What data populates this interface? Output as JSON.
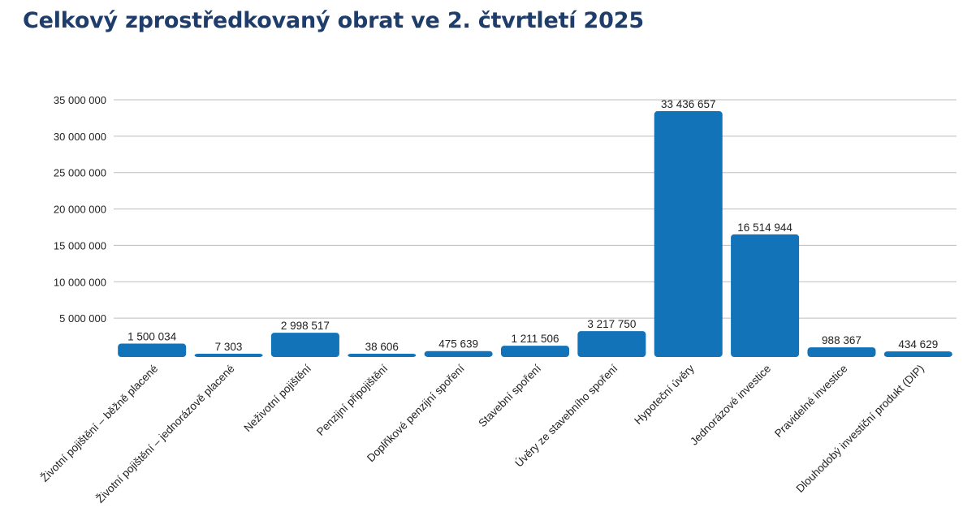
{
  "title": "Celkový zprostředkovaný obrat ve 2. čtvrtletí 2025",
  "chart_data": {
    "type": "bar",
    "title": "Celkový zprostředkovaný obrat ve 2. čtvrtletí 2025",
    "xlabel": "",
    "ylabel": "",
    "ylim": [
      0,
      35000000
    ],
    "yticks": [
      5000000,
      10000000,
      15000000,
      20000000,
      25000000,
      30000000,
      35000000
    ],
    "ytick_labels": [
      "5 000 000",
      "10 000 000",
      "15 000 000",
      "20 000 000",
      "25 000 000",
      "30 000 000",
      "35 000 000"
    ],
    "grid": true,
    "bar_color": "#1273b9",
    "categories": [
      "Životní pojištění – běžně placené",
      "Životní pojištění – jednorázově placené",
      "Neživotní pojištění",
      "Penzijní připojištění",
      "Doplňkové penzijní spoření",
      "Stavební spoření",
      "Úvěry ze stavebního spoření",
      "Hypoteční úvěry",
      "Jednorázové investice",
      "Pravidelné investice",
      "Dlouhodobý investiční produkt (DIP)"
    ],
    "values": [
      1500034,
      7303,
      2998517,
      38606,
      475639,
      1211506,
      3217750,
      33436657,
      16514944,
      988367,
      434629
    ],
    "value_labels": [
      "1 500 034",
      "7 303",
      "2 998 517",
      "38 606",
      "475 639",
      "1 211 506",
      "3 217 750",
      "33 436 657",
      "16 514 944",
      "988 367",
      "434 629"
    ]
  }
}
